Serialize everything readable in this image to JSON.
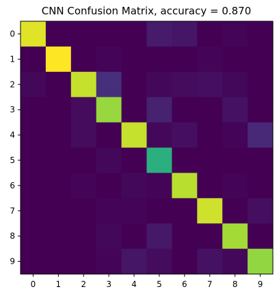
{
  "chart_data": {
    "type": "heatmap",
    "title": "CNN Confusion Matrix, accuracy = 0.870",
    "xlabel": "",
    "ylabel": "",
    "x_ticks": [
      "0",
      "1",
      "2",
      "3",
      "4",
      "5",
      "6",
      "7",
      "8",
      "9"
    ],
    "y_ticks": [
      "0",
      "1",
      "2",
      "3",
      "4",
      "5",
      "6",
      "7",
      "8",
      "9"
    ],
    "colormap": "viridis",
    "value_range": [
      0,
      1
    ],
    "grid": false,
    "matrix": [
      [
        0.96,
        0.0,
        0.0,
        0.0,
        0.0,
        0.08,
        0.06,
        0.0,
        0.01,
        0.0
      ],
      [
        0.0,
        1.0,
        0.0,
        0.01,
        0.0,
        0.0,
        0.0,
        0.01,
        0.0,
        0.0
      ],
      [
        0.02,
        0.0,
        0.92,
        0.14,
        0.0,
        0.02,
        0.03,
        0.04,
        0.02,
        0.0
      ],
      [
        0.0,
        0.0,
        0.03,
        0.85,
        0.0,
        0.1,
        0.0,
        0.0,
        0.05,
        0.0
      ],
      [
        0.0,
        0.0,
        0.03,
        0.0,
        0.92,
        0.02,
        0.04,
        0.0,
        0.01,
        0.12
      ],
      [
        0.0,
        0.0,
        0.0,
        0.02,
        0.0,
        0.64,
        0.0,
        0.0,
        0.0,
        0.0
      ],
      [
        0.0,
        0.0,
        0.01,
        0.0,
        0.02,
        0.01,
        0.9,
        0.0,
        0.01,
        0.0
      ],
      [
        0.0,
        0.0,
        0.0,
        0.01,
        0.01,
        0.0,
        0.0,
        0.93,
        0.0,
        0.04
      ],
      [
        0.0,
        0.0,
        0.0,
        0.02,
        0.0,
        0.07,
        0.0,
        0.0,
        0.87,
        0.0
      ],
      [
        0.0,
        0.0,
        0.0,
        0.01,
        0.06,
        0.03,
        0.0,
        0.05,
        0.02,
        0.84
      ]
    ]
  }
}
